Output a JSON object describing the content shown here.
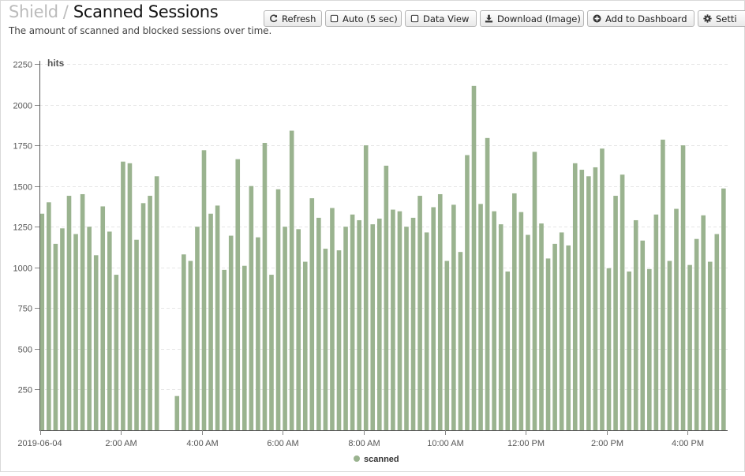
{
  "header": {
    "breadcrumb_parent": "Shield",
    "breadcrumb_separator": "/",
    "title": "Scanned Sessions",
    "subtitle": "The amount of scanned and blocked sessions over time."
  },
  "toolbar": {
    "refresh_label": "Refresh",
    "auto_label": "Auto (5 sec)",
    "auto_checked": false,
    "data_view_label": "Data View",
    "data_view_checked": false,
    "download_label": "Download (Image)",
    "dashboard_label": "Add to Dashboard",
    "settings_label": "Setti"
  },
  "colors": {
    "bar": "#9ab38f",
    "axis": "#555555",
    "grid": "#e6e6e6"
  },
  "chart_data": {
    "type": "bar",
    "ylabel": "hits",
    "ylim": [
      0,
      2250
    ],
    "yticks": [
      250,
      500,
      750,
      1000,
      1250,
      1500,
      1750,
      2000,
      2250
    ],
    "grid": "horizontal dashed",
    "legend_position": "bottom-center",
    "x_tick_labels": [
      "2019-06-04",
      "2:00 AM",
      "4:00 AM",
      "6:00 AM",
      "8:00 AM",
      "10:00 AM",
      "12:00 PM",
      "2:00 PM",
      "4:00 PM"
    ],
    "x_tick_hours": [
      0,
      2,
      4,
      6,
      8,
      10,
      12,
      14,
      16
    ],
    "x_start": "2019-06-04 00:00",
    "interval_minutes": 10,
    "series": [
      {
        "name": "scanned",
        "values": [
          1330,
          1400,
          1145,
          1240,
          1440,
          1205,
          1450,
          1250,
          1075,
          1375,
          1220,
          955,
          1650,
          1640,
          1170,
          1395,
          1440,
          1560,
          null,
          null,
          210,
          1080,
          1040,
          1250,
          1720,
          1330,
          1380,
          985,
          1195,
          1665,
          1010,
          1500,
          1185,
          1765,
          955,
          1480,
          1250,
          1840,
          1235,
          1035,
          1425,
          1305,
          1115,
          1365,
          1105,
          1250,
          1325,
          1290,
          1750,
          1265,
          1300,
          1625,
          1355,
          1345,
          1250,
          1305,
          1440,
          1215,
          1370,
          1450,
          1040,
          1385,
          1095,
          1690,
          2115,
          1390,
          1795,
          1345,
          1265,
          975,
          1455,
          1340,
          1200,
          1710,
          1270,
          1055,
          1145,
          1215,
          1135,
          1640,
          1600,
          1560,
          1615,
          1730,
          995,
          1440,
          1570,
          975,
          1290,
          1165,
          990,
          1325,
          1785,
          1040,
          1360,
          1750,
          1015,
          1175,
          1320,
          1035,
          1205,
          1485
        ]
      }
    ]
  }
}
